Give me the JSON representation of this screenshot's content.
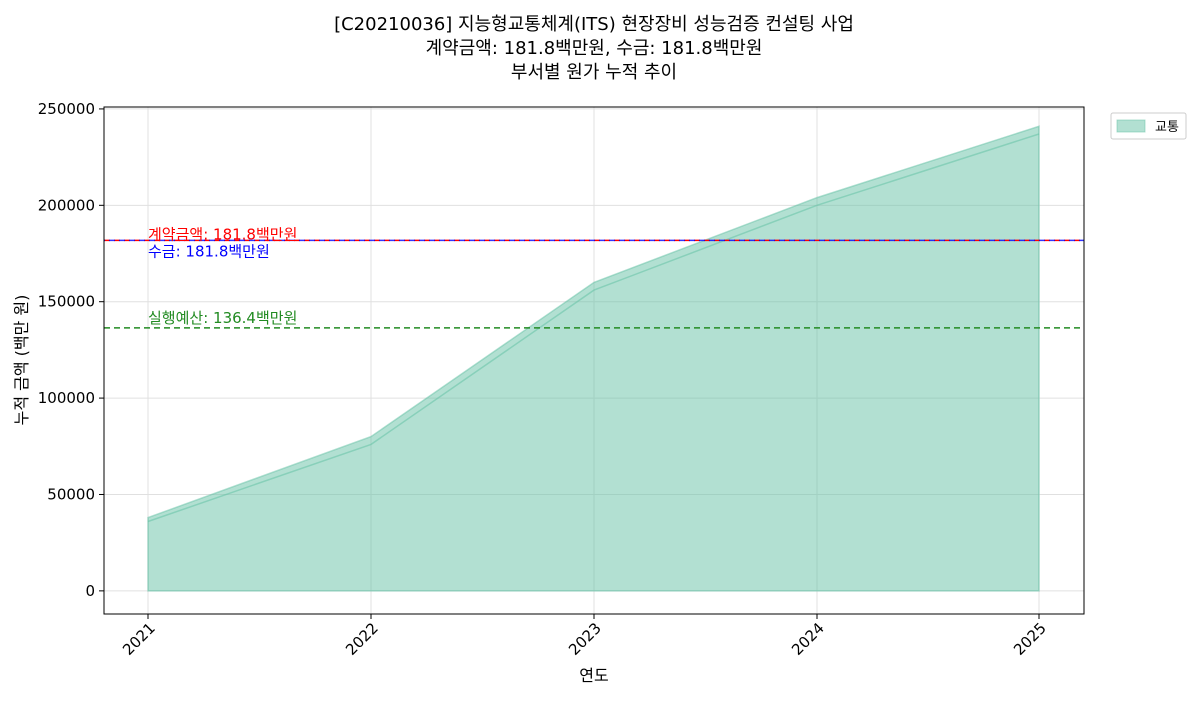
{
  "chart_data": {
    "type": "area",
    "title_lines": [
      "[C20210036] 지능형교통체계(ITS) 현장장비 성능검증 컨설팅 사업",
      "계약금액: 181.8백만원, 수금: 181.8백만원",
      "부서별 원가 누적 추이"
    ],
    "xlabel": "연도",
    "ylabel": "누적 금액 (백만 원)",
    "x": [
      "2021",
      "2022",
      "2023",
      "2024",
      "2025"
    ],
    "ylim": [
      -12000,
      251000
    ],
    "yticks": [
      0,
      50000,
      100000,
      150000,
      200000,
      250000
    ],
    "ytick_labels": [
      "0",
      "50000",
      "100000",
      "150000",
      "200000",
      "250000"
    ],
    "grid": true,
    "legend_position": "outside-top-right",
    "series": [
      {
        "name": "교통",
        "values": [
          38000,
          80000,
          160000,
          204000,
          241000
        ],
        "color": "#66c2a5"
      }
    ],
    "inner_line_values": [
      36000,
      76000,
      156000,
      200000,
      237000
    ],
    "reference_lines": [
      {
        "label": "계약금액: 181.8백만원",
        "value": 181800,
        "color": "#ff0000"
      },
      {
        "label": "수금: 181.8백만원",
        "value": 181800,
        "color": "#0000ff"
      },
      {
        "label": "실행예산: 136.4백만원",
        "value": 136400,
        "color": "#228b22"
      }
    ]
  }
}
